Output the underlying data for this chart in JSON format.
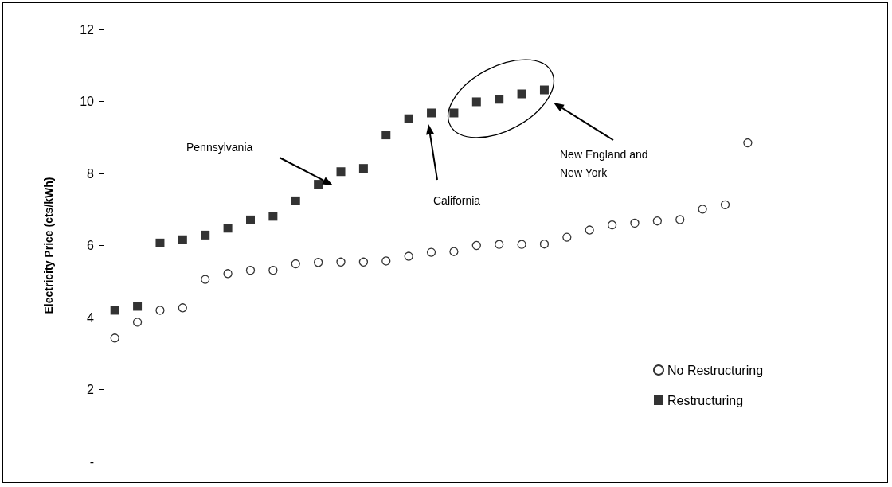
{
  "chart_data": {
    "type": "scatter",
    "ylabel": "Electricity Price (cts/kWh)",
    "categories": [
      null,
      null,
      null,
      null,
      null,
      null,
      null,
      null,
      null,
      null,
      null,
      null,
      null,
      null,
      null,
      null,
      null,
      null,
      null,
      null,
      null,
      null,
      null,
      null,
      null,
      null,
      null,
      null,
      null,
      null,
      null,
      null,
      null,
      null
    ],
    "series": [
      {
        "name": "No Restructuring",
        "color": "#000000",
        "marker": "circle",
        "values": [
          3.43,
          3.87,
          4.2,
          4.27,
          5.06,
          5.22,
          5.31,
          5.31,
          5.49,
          5.53,
          5.54,
          5.54,
          5.57,
          5.7,
          5.81,
          5.83,
          6.0,
          6.03,
          6.03,
          6.04,
          6.23,
          6.43,
          6.57,
          6.62,
          6.68,
          6.72,
          7.01,
          7.13,
          8.85,
          null,
          null,
          null,
          null,
          null
        ]
      },
      {
        "name": "Restructuring",
        "color": "#000000",
        "marker": "square",
        "values": [
          4.2,
          4.31,
          6.07,
          6.16,
          6.29,
          6.48,
          6.71,
          6.81,
          7.24,
          7.7,
          8.05,
          8.14,
          9.07,
          9.52,
          9.68,
          9.68,
          9.99,
          10.06,
          10.21,
          10.32,
          null,
          null,
          null,
          null,
          null,
          null,
          null,
          null,
          null,
          null,
          null,
          null,
          null,
          null
        ]
      }
    ],
    "ylim": [
      0,
      12
    ],
    "yticks": [
      {
        "value": 0,
        "label": "-"
      },
      2,
      4,
      6,
      8,
      10,
      12
    ],
    "grid": false,
    "legend": "bottom right",
    "annotations": [
      "Pennsylvania",
      "California",
      "New England and\nNew York"
    ]
  }
}
